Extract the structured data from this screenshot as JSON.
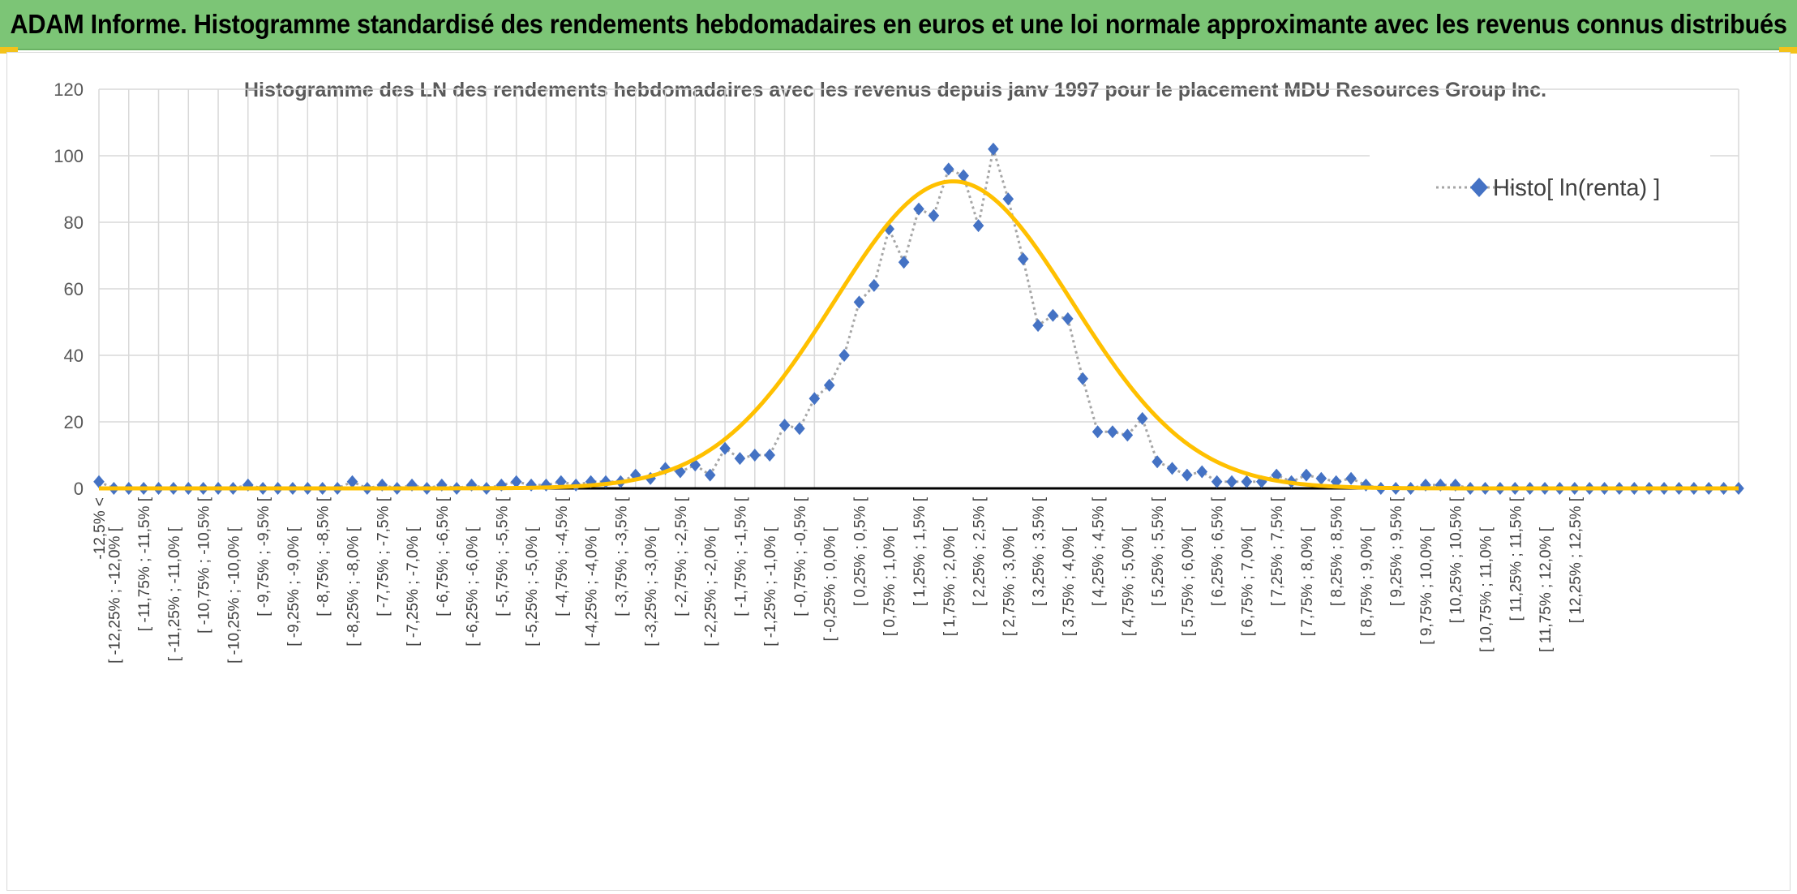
{
  "header": {
    "title": "ADAM Informe. Histogramme standardisé des rendements hebdomadaires en euros et une loi normale approximante avec les revenus connus distribués"
  },
  "colors": {
    "header_bg": "#7cc576",
    "corner": "#f3c21b",
    "marker": "#4472c4",
    "curve": "#ffc000",
    "connector": "#a6a6a6",
    "grid": "#d9d9d9"
  },
  "chart_data": {
    "type": "scatter",
    "title": "Histogramme des LN des rendements hebdomadaires avec les revenus depuis janv 1997 pour le placement MDU Resources Group Inc.",
    "xlabel": "",
    "ylabel": "",
    "ylim": [
      0,
      120
    ],
    "yticks": [
      "0",
      "20",
      "40",
      "60",
      "80",
      "100",
      "120"
    ],
    "grid": true,
    "legend_position": "top-right",
    "categories": [
      "-12,5% <",
      "[ -12,25% ; -12,0% [",
      "[ -11,75% ; -11,5% [",
      "[ -11,25% ; -11,0% [",
      "[ -10,75% ; -10,5% [",
      "[ -10,25% ; -10,0% [",
      "[ -9,75% ; -9,5% [",
      "[ -9,25% ; -9,0% [",
      "[ -8,75% ; -8,5% [",
      "[ -8,25% ; -8,0% [",
      "[ -7,75% ; -7,5% [",
      "[ -7,25% ; -7,0% [",
      "[ -6,75% ; -6,5% [",
      "[ -6,25% ; -6,0% [",
      "[ -5,75% ; -5,5% [",
      "[ -5,25% ; -5,0% [",
      "[ -4,75% ; -4,5% [",
      "[ -4,25% ; -4,0% [",
      "[ -3,75% ; -3,5% [",
      "[ -3,25% ; -3,0% [",
      "[ -2,75% ; -2,5% [",
      "[ -2,25% ; -2,0% [",
      "[ -1,75% ; -1,5% [",
      "[ -1,25% ; -1,0% [",
      "[ -0,75% ; -0,5% [",
      "[ -0,25% ; 0,0% [",
      "[ 0,25% ; 0,5% [",
      "[ 0,75% ; 1,0% [",
      "[ 1,25% ; 1,5% [",
      "[ 1,75% ; 2,0% [",
      "[ 2,25% ; 2,5% [",
      "[ 2,75% ; 3,0% [",
      "[ 3,25% ; 3,5% [",
      "[ 3,75% ; 4,0% [",
      "[ 4,25% ; 4,5% [",
      "[ 4,75% ; 5,0% [",
      "[ 5,25% ; 5,5% [",
      "[ 5,75% ; 6,0% [",
      "[ 6,25% ; 6,5% [",
      "[ 6,75% ; 7,0% [",
      "[ 7,25% ; 7,5% [",
      "[ 7,75% ; 8,0% [",
      "[ 8,25% ; 8,5% [",
      "[ 8,75% ; 9,0% [",
      "[ 9,25% ; 9,5% [",
      "[ 9,75% ; 10,0% [",
      "[ 10,25% ; 10,5% [",
      "[ 10,75% ; 11,0% [",
      "[ 11,25% ; 11,5% [",
      "[ 11,75% ; 12,0% [",
      "[ 12,25% ; 12,5% ["
    ],
    "series": [
      {
        "name": "Histo[ ln(renta) ]",
        "kind": "scatter-dotted",
        "values": [
          2,
          0,
          0,
          0,
          0,
          0,
          0,
          0,
          0,
          0,
          1,
          0,
          0,
          0,
          0,
          0,
          0,
          2,
          0,
          1,
          0,
          1,
          0,
          1,
          0,
          1,
          0,
          1,
          2,
          1,
          1,
          2,
          1,
          2,
          2,
          2,
          4,
          3,
          6,
          5,
          7,
          4,
          12,
          9,
          10,
          10,
          19,
          18,
          27,
          31,
          40,
          56,
          61,
          78,
          68,
          84,
          82,
          96,
          94,
          79,
          102,
          87,
          69,
          49,
          52,
          51,
          33,
          17,
          17,
          16,
          21,
          8,
          6,
          4,
          5,
          2,
          2,
          2,
          2,
          4,
          2,
          4,
          3,
          2,
          3,
          1,
          0,
          0,
          0,
          1,
          1,
          1,
          0,
          0,
          0,
          0,
          0,
          0,
          0,
          0,
          0,
          0,
          0,
          0,
          0,
          0,
          0,
          0,
          0,
          0,
          0
        ]
      },
      {
        "name": "",
        "kind": "normal-curve",
        "mean_index": 57.3,
        "sd_index": 8.0,
        "peak": 92.3
      }
    ]
  }
}
